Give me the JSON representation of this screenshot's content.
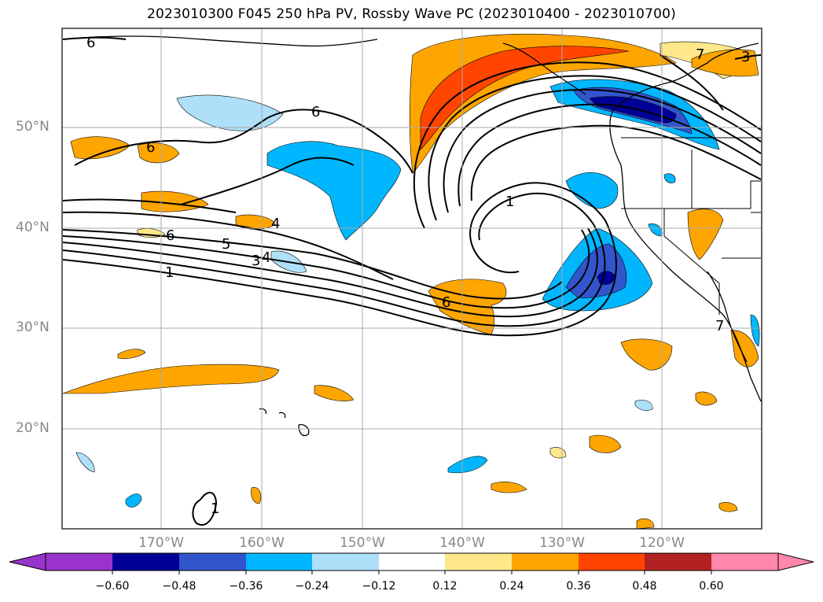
{
  "figure": {
    "title": "2023010300 F045 250 hPa PV, Rossby Wave PC (2023010400 - 2023010700)"
  },
  "axes": {
    "lat_labels": [
      "50°N",
      "40°N",
      "30°N",
      "20°N"
    ],
    "lon_labels": [
      "170°W",
      "160°W",
      "150°W",
      "140°W",
      "130°W",
      "120°W"
    ]
  },
  "contour_labels": [
    "6",
    "6",
    "6",
    "6",
    "4",
    "4",
    "5",
    "3",
    "1",
    "1",
    "6",
    "7",
    "7",
    "3",
    "1"
  ],
  "colorbar": {
    "ticks": [
      "−0.60",
      "−0.48",
      "−0.36",
      "−0.24",
      "−0.12",
      "0.12",
      "0.24",
      "0.36",
      "0.48",
      "0.60"
    ],
    "colors": [
      "#9933cc",
      "#000099",
      "#3355cc",
      "#00b7ff",
      "#aee0fa",
      "#ffffff",
      "#ffe88a",
      "#ffa500",
      "#ff4500",
      "#b22222",
      "#ff88aa"
    ]
  },
  "chart_data": {
    "type": "map",
    "projection": "lat-lon",
    "lon_range": [
      -180,
      -110
    ],
    "lat_range": [
      10,
      60
    ],
    "variable_contours": "250 hPa PV",
    "variable_shaded": "Rossby Wave PC",
    "contour_levels": [
      1,
      3,
      4,
      5,
      6,
      7
    ],
    "shading_levels": [
      -0.6,
      -0.48,
      -0.36,
      -0.24,
      -0.12,
      0.12,
      0.24,
      0.36,
      0.48,
      0.6
    ],
    "grid": true
  }
}
